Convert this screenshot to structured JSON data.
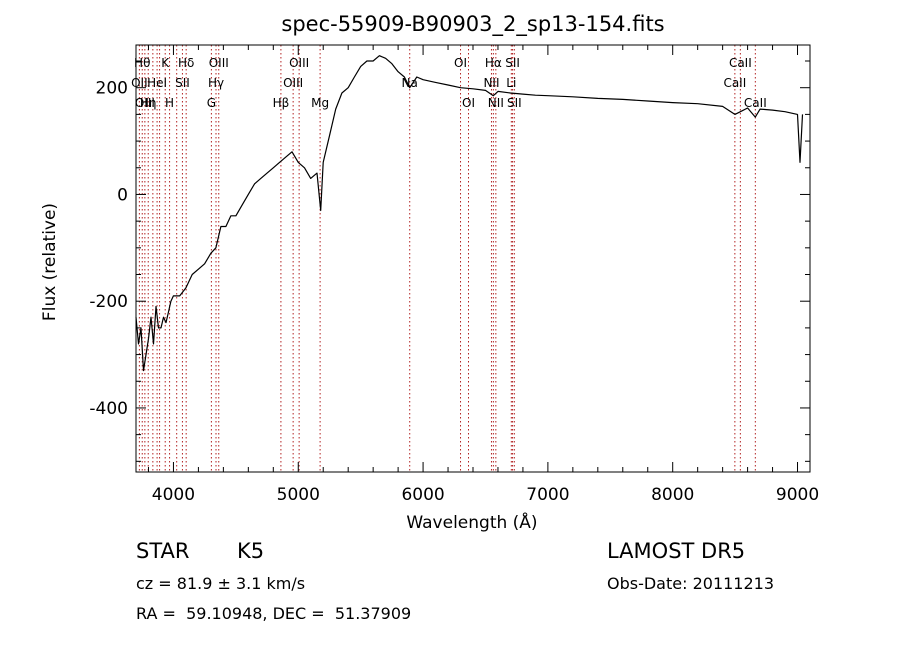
{
  "chart_data": {
    "type": "line",
    "title": "spec-55909-B90903_2_sp13-154.fits",
    "xlabel": "Wavelength (Å)",
    "ylabel": "Flux (relative)",
    "xlim": [
      3700,
      9100
    ],
    "ylim": [
      -520,
      280
    ],
    "xticks": [
      4000,
      5000,
      6000,
      7000,
      8000,
      9000
    ],
    "yticks": [
      -400,
      -200,
      0,
      200
    ],
    "grid": false,
    "line_color": "#000000",
    "marker_color": "#b22222",
    "series": [
      {
        "x": [
          3700,
          3720,
          3740,
          3760,
          3780,
          3800,
          3820,
          3840,
          3860,
          3880,
          3900,
          3920,
          3940,
          3960,
          3980,
          4000,
          4050,
          4100,
          4150,
          4200,
          4250,
          4300,
          4340,
          4380,
          4420,
          4460,
          4500,
          4550,
          4600,
          4650,
          4700,
          4750,
          4800,
          4850,
          4900,
          4950,
          5000,
          5050,
          5100,
          5150,
          5180,
          5200,
          5250,
          5300,
          5350,
          5400,
          5450,
          5500,
          5550,
          5600,
          5650,
          5700,
          5750,
          5800,
          5850,
          5893,
          5950,
          6000,
          6100,
          6200,
          6300,
          6400,
          6500,
          6563,
          6600,
          6700,
          6800,
          6900,
          7000,
          7200,
          7400,
          7600,
          7800,
          8000,
          8200,
          8400,
          8498,
          8542,
          8600,
          8662,
          8700,
          8800,
          8900,
          9000,
          9020,
          9040
        ],
        "y": [
          -230,
          -280,
          -250,
          -330,
          -300,
          -270,
          -230,
          -280,
          -210,
          -250,
          -250,
          -230,
          -240,
          -220,
          -200,
          -190,
          -190,
          -175,
          -150,
          -140,
          -130,
          -110,
          -100,
          -60,
          -60,
          -40,
          -40,
          -20,
          0,
          20,
          30,
          40,
          50,
          60,
          70,
          80,
          60,
          50,
          30,
          40,
          -30,
          60,
          110,
          160,
          190,
          200,
          220,
          240,
          250,
          250,
          260,
          255,
          245,
          230,
          220,
          200,
          220,
          215,
          210,
          205,
          200,
          198,
          195,
          185,
          193,
          190,
          188,
          186,
          185,
          183,
          180,
          178,
          175,
          172,
          170,
          165,
          150,
          155,
          162,
          145,
          160,
          158,
          155,
          150,
          60,
          150
        ]
      }
    ],
    "line_markers": [
      {
        "x": 3727,
        "label": "OII",
        "row": 2
      },
      {
        "x": 3750,
        "label": "Hθ",
        "row": 1
      },
      {
        "x": 3771,
        "label": "OIII",
        "row": 3
      },
      {
        "x": 3798,
        "label": "Hη",
        "row": 3
      },
      {
        "x": 3835,
        "label": "",
        "row": 0
      },
      {
        "x": 3869,
        "label": "HeI",
        "row": 2
      },
      {
        "x": 3889,
        "label": "",
        "row": 0
      },
      {
        "x": 3934,
        "label": "K",
        "row": 1
      },
      {
        "x": 3969,
        "label": "H",
        "row": 3
      },
      {
        "x": 4026,
        "label": "",
        "row": 0
      },
      {
        "x": 4072,
        "label": "SII",
        "row": 2
      },
      {
        "x": 4102,
        "label": "Hδ",
        "row": 1
      },
      {
        "x": 4304,
        "label": "G",
        "row": 3
      },
      {
        "x": 4341,
        "label": "Hγ",
        "row": 2
      },
      {
        "x": 4363,
        "label": "OIII",
        "row": 1
      },
      {
        "x": 4861,
        "label": "Hβ",
        "row": 3
      },
      {
        "x": 4959,
        "label": "OIII",
        "row": 2
      },
      {
        "x": 5007,
        "label": "OIII",
        "row": 1
      },
      {
        "x": 5175,
        "label": "Mg",
        "row": 3
      },
      {
        "x": 5893,
        "label": "Na",
        "row": 2
      },
      {
        "x": 6300,
        "label": "OI",
        "row": 1
      },
      {
        "x": 6364,
        "label": "OI",
        "row": 3
      },
      {
        "x": 6548,
        "label": "NII",
        "row": 2
      },
      {
        "x": 6563,
        "label": "Hα",
        "row": 1
      },
      {
        "x": 6583,
        "label": "NII",
        "row": 3
      },
      {
        "x": 6707,
        "label": "Li",
        "row": 2
      },
      {
        "x": 6717,
        "label": "SII",
        "row": 1
      },
      {
        "x": 6731,
        "label": "SII",
        "row": 3
      },
      {
        "x": 8498,
        "label": "CaII",
        "row": 2
      },
      {
        "x": 8542,
        "label": "CaII",
        "row": 1
      },
      {
        "x": 8662,
        "label": "CaII",
        "row": 3
      }
    ]
  },
  "info": {
    "class": "STAR",
    "subclass": "K5",
    "cz": "cz = 81.9 ± 3.1 km/s",
    "coords": "RA =  59.10948, DEC =  51.37909",
    "survey": "LAMOST DR5",
    "obsdate": "Obs-Date: 20111213"
  }
}
